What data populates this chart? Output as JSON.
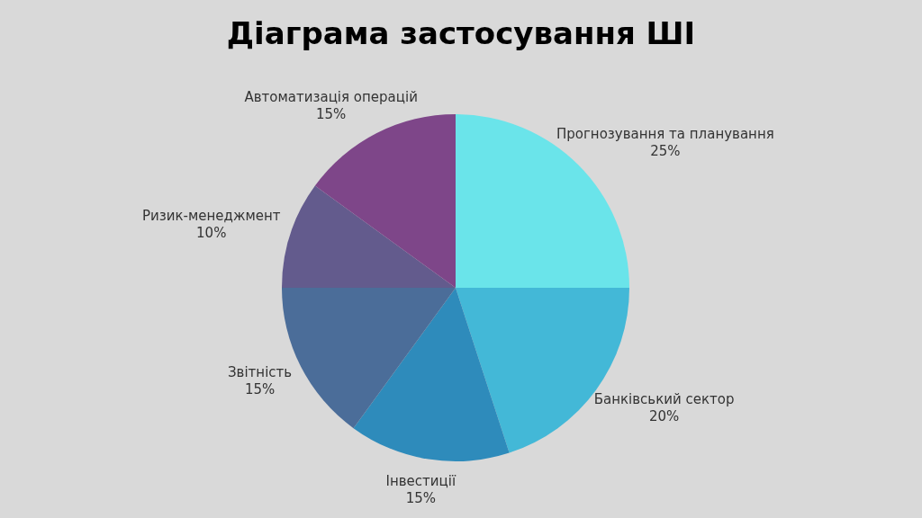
{
  "chart_data": {
    "type": "pie",
    "title": "Діаграма застосування ШІ",
    "categories": [
      "Прогнозування та планування",
      "Банківський сектор",
      "Інвестиції",
      "Звітність",
      "Ризик-менеджмент",
      "Автоматизація операцій"
    ],
    "values": [
      25,
      20,
      15,
      15,
      10,
      15
    ],
    "value_labels": [
      "25%",
      "20%",
      "15%",
      "15%",
      "10%",
      "15%"
    ],
    "colors": [
      "#6ae4ea",
      "#43b8d7",
      "#2e8bbb",
      "#4b6d99",
      "#635b8d",
      "#7e4689"
    ]
  }
}
